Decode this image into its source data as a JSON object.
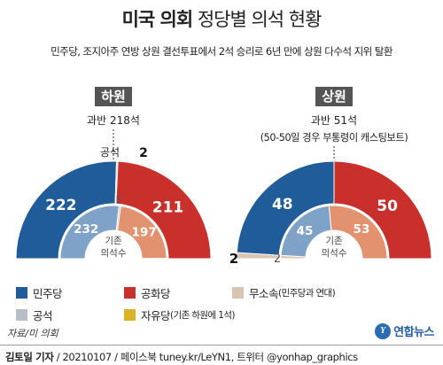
{
  "header": {
    "title_bold": "미국 의회",
    "title_rest": "정당별 의석 현황",
    "subtitle": "민주당, 조지아주 연방 상원 결선투표에서 2석 승리로 6년 만에 상원 다수석 지위 탈환"
  },
  "colors": {
    "democrat": "#1f5c99",
    "republican": "#c9302c",
    "democrat_light": "#7fa2c8",
    "republican_light": "#e2926e",
    "independent": "#d9c5b2",
    "vacant": "#b8bec6",
    "libertarian": "#d9b526",
    "label_bg": "#555555"
  },
  "chart_data": [
    {
      "type": "semicircle",
      "panel": "house",
      "title": "하원",
      "majority_note": "과반 218석",
      "vacancy_label": "공석",
      "vacancy_count": "2",
      "inner_label_line1": "기존",
      "inner_label_line2": "의석수",
      "outer": [
        {
          "party": "민주당",
          "value": 222,
          "color": "#1f5c99"
        },
        {
          "party": "공석",
          "value": 2,
          "color": "#b8bec6"
        },
        {
          "party": "공화당",
          "value": 211,
          "color": "#c9302c"
        }
      ],
      "inner": [
        {
          "party": "민주당",
          "value": 232,
          "color": "#7fa2c8"
        },
        {
          "party": "공석",
          "value": 5,
          "color": "#b8bec6"
        },
        {
          "party": "공화당",
          "value": 197,
          "color": "#e2926e"
        },
        {
          "party": "자유당",
          "value": 1,
          "color": "#d9b526"
        }
      ]
    },
    {
      "type": "semicircle",
      "panel": "senate",
      "title": "상원",
      "majority_note_line1": "과반 51석",
      "majority_note_line2": "(50-50일 경우 부통령이 캐스팅보트)",
      "inner_label_line1": "기존",
      "inner_label_line2": "의석수",
      "outer": [
        {
          "party": "무소속",
          "value": 2,
          "color": "#d9c5b2"
        },
        {
          "party": "민주당",
          "value": 48,
          "color": "#1f5c99"
        },
        {
          "party": "공화당",
          "value": 50,
          "color": "#c9302c"
        }
      ],
      "inner": [
        {
          "party": "무소속",
          "value": 2,
          "color": "#d9c5b2"
        },
        {
          "party": "민주당",
          "value": 45,
          "color": "#7fa2c8"
        },
        {
          "party": "공화당",
          "value": 53,
          "color": "#e2926e"
        }
      ],
      "independent_outer_label": "2",
      "independent_inner_label": "2"
    }
  ],
  "legend": {
    "items": [
      {
        "label": "민주당",
        "note": "",
        "color": "#1f5c99"
      },
      {
        "label": "공화당",
        "note": "",
        "color": "#c9302c"
      },
      {
        "label": "무소속",
        "note": "(민주당과 연대)",
        "color": "#d9c5b2"
      },
      {
        "label": "공석",
        "note": "",
        "color": "#b8bec6"
      },
      {
        "label": "자유당",
        "note": "(기존 하원에 1석)",
        "color": "#d9b526"
      }
    ]
  },
  "source": "자료/미 의회",
  "logo": {
    "mark": "Y",
    "text": "연합뉴스"
  },
  "credit": {
    "author": "김토일 기자",
    "rest": " / 20210107 / 페이스북 tuney.kr/LeYN1, 트위터 @yonhap_graphics"
  }
}
